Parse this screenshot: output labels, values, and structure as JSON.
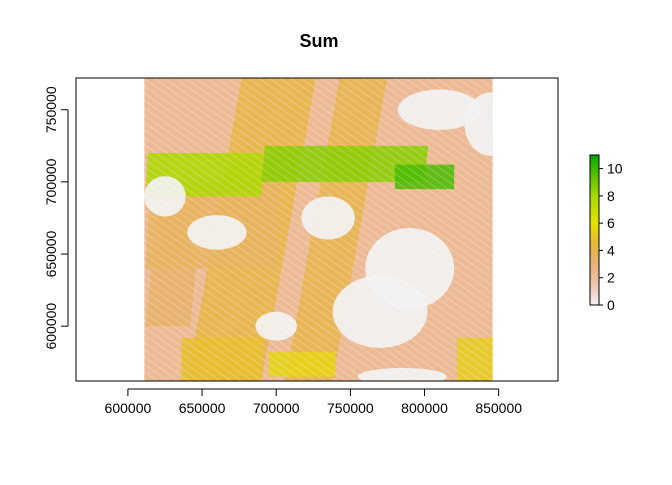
{
  "chart_data": {
    "type": "heatmap",
    "title": "Sum",
    "xlabel": "",
    "ylabel": "",
    "xlim": [
      565000,
      890000
    ],
    "ylim": [
      562000,
      772000
    ],
    "data_extent": {
      "x": [
        611000,
        846000
      ],
      "y": [
        562000,
        772000
      ]
    },
    "x_ticks": [
      {
        "value": 600000,
        "label": "600000"
      },
      {
        "value": 650000,
        "label": "650000"
      },
      {
        "value": 700000,
        "label": "700000"
      },
      {
        "value": 750000,
        "label": "750000"
      },
      {
        "value": 800000,
        "label": "800000"
      },
      {
        "value": 850000,
        "label": "850000"
      }
    ],
    "y_ticks": [
      {
        "value": 600000,
        "label": "600000"
      },
      {
        "value": 650000,
        "label": "650000"
      },
      {
        "value": 700000,
        "label": "700000"
      },
      {
        "value": 750000,
        "label": "750000"
      }
    ],
    "legend": {
      "position": "right",
      "min": 0,
      "max": 11,
      "ticks": [
        {
          "value": 0,
          "label": "0"
        },
        {
          "value": 2,
          "label": "2"
        },
        {
          "value": 4,
          "label": "4"
        },
        {
          "value": 6,
          "label": "6"
        },
        {
          "value": 8,
          "label": "8"
        },
        {
          "value": 10,
          "label": "10"
        }
      ],
      "colormap": [
        {
          "value": 0,
          "color": "#f2f2f2"
        },
        {
          "value": 1.5,
          "color": "#eec4ae"
        },
        {
          "value": 3,
          "color": "#e9b07a"
        },
        {
          "value": 4.5,
          "color": "#e6b73a"
        },
        {
          "value": 6,
          "color": "#e6e400"
        },
        {
          "value": 8,
          "color": "#a6d800"
        },
        {
          "value": 10,
          "color": "#40b800"
        },
        {
          "value": 11,
          "color": "#00a600"
        }
      ]
    },
    "regions": [
      {
        "x": [
          640000,
          690000
        ],
        "y": [
          562000,
          772000
        ],
        "value": 4.2,
        "tilt": 0.18
      },
      {
        "x": [
          706000,
          738000
        ],
        "y": [
          562000,
          772000
        ],
        "value": 4.0,
        "tilt": 0.18
      },
      {
        "x": [
          612000,
          642000
        ],
        "y": [
          600000,
          700000
        ],
        "value": 3.4,
        "tilt": 0.1
      },
      {
        "x": [
          612000,
          700000
        ],
        "y": [
          640000,
          700000
        ],
        "value": 3.6,
        "tilt": 0.05
      },
      {
        "x": [
          612000,
          690000
        ],
        "y": [
          690000,
          720000
        ],
        "value": 7.8,
        "tilt": 0.05
      },
      {
        "x": [
          690000,
          800000
        ],
        "y": [
          700000,
          725000
        ],
        "value": 8.6,
        "tilt": 0.1
      },
      {
        "x": [
          780000,
          820000
        ],
        "y": [
          695000,
          712000
        ],
        "value": 9.8,
        "tilt": 0.0
      },
      {
        "x": [
          695000,
          740000
        ],
        "y": [
          565000,
          582000
        ],
        "value": 5.5,
        "tilt": 0.0
      },
      {
        "x": [
          822000,
          846000
        ],
        "y": [
          562000,
          592000
        ],
        "value": 5.2,
        "tilt": 0.0
      },
      {
        "x": [
          636000,
          690000
        ],
        "y": [
          562000,
          592000
        ],
        "value": 4.8,
        "tilt": 0.0
      }
    ],
    "clear_regions": [
      {
        "cx": 790000,
        "cy": 640000,
        "rx": 30000,
        "ry": 28000
      },
      {
        "cx": 770000,
        "cy": 610000,
        "rx": 32000,
        "ry": 25000
      },
      {
        "cx": 810000,
        "cy": 750000,
        "rx": 28000,
        "ry": 14000
      },
      {
        "cx": 845000,
        "cy": 740000,
        "rx": 18000,
        "ry": 22000
      },
      {
        "cx": 735000,
        "cy": 675000,
        "rx": 18000,
        "ry": 15000
      },
      {
        "cx": 660000,
        "cy": 665000,
        "rx": 20000,
        "ry": 12000
      },
      {
        "cx": 625000,
        "cy": 690000,
        "rx": 14000,
        "ry": 14000
      },
      {
        "cx": 700000,
        "cy": 600000,
        "rx": 14000,
        "ry": 10000
      },
      {
        "cx": 785000,
        "cy": 565000,
        "rx": 30000,
        "ry": 6000
      }
    ]
  }
}
